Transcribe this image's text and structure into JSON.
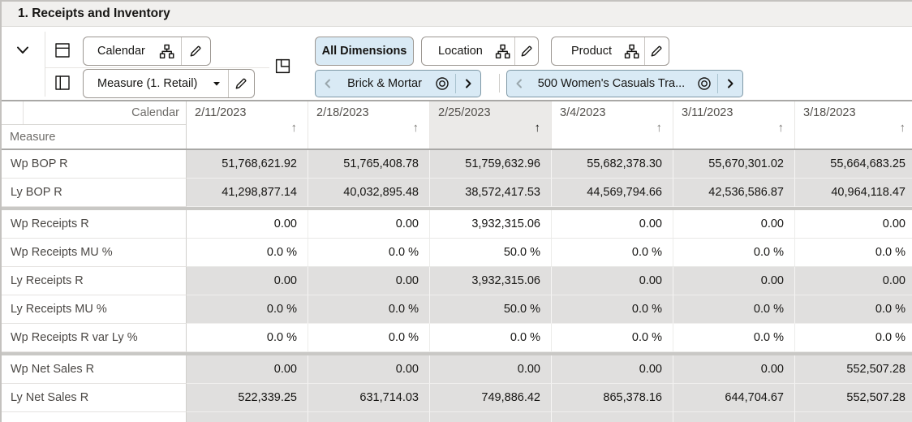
{
  "title": "1. Receipts and Inventory",
  "colors": {
    "window-border": "#c4c2bf",
    "titlebar-bg": "#f1f0ee",
    "btn-border": "#9c9792",
    "accent-bg": "#d9eaf5",
    "tile-border": "#7e98a6",
    "shaded": "#e0dfde",
    "sep": "#c9c8c5",
    "sorted-bg": "#ebeae8",
    "text": "#161513",
    "muted": "#6e6c69",
    "label": "#4b4845",
    "date": "#524f4b",
    "header-border": "#a9a8a6"
  },
  "toolbar": {
    "calendar_button": {
      "label": "Calendar"
    },
    "measure_button": {
      "label": "Measure (1. Retail)"
    },
    "all_dimensions_button": {
      "label": "All Dimensions"
    },
    "location_button": {
      "label": "Location"
    },
    "product_button": {
      "label": "Product"
    },
    "location_tile": {
      "label": "Brick & Mortar"
    },
    "product_tile": {
      "label": "500 Women's Casuals Tra..."
    }
  },
  "grid": {
    "column_dimension_label": "Calendar",
    "row_dimension_label": "Measure",
    "sort_arrow_glyph": "↑",
    "columns": [
      {
        "label": "2/11/2023",
        "sorted": false
      },
      {
        "label": "2/18/2023",
        "sorted": false
      },
      {
        "label": "2/25/2023",
        "sorted": true
      },
      {
        "label": "3/4/2023",
        "sorted": false
      },
      {
        "label": "3/11/2023",
        "sorted": false
      },
      {
        "label": "3/18/2023",
        "sorted": false
      }
    ],
    "rows": [
      {
        "label": "Wp BOP R",
        "shaded": true,
        "separator_before": false,
        "values": [
          "51,768,621.92",
          "51,765,408.78",
          "51,759,632.96",
          "55,682,378.30",
          "55,670,301.02",
          "55,664,683.25"
        ]
      },
      {
        "label": "Ly BOP R",
        "shaded": true,
        "separator_before": false,
        "values": [
          "41,298,877.14",
          "40,032,895.48",
          "38,572,417.53",
          "44,569,794.66",
          "42,536,586.87",
          "40,964,118.47"
        ]
      },
      {
        "label": "Wp Receipts R",
        "shaded": false,
        "separator_before": true,
        "values": [
          "0.00",
          "0.00",
          "3,932,315.06",
          "0.00",
          "0.00",
          "0.00"
        ]
      },
      {
        "label": "Wp Receipts MU %",
        "shaded": false,
        "separator_before": false,
        "values": [
          "0.0 %",
          "0.0 %",
          "50.0 %",
          "0.0 %",
          "0.0 %",
          "0.0 %"
        ]
      },
      {
        "label": "Ly Receipts R",
        "shaded": true,
        "separator_before": false,
        "values": [
          "0.00",
          "0.00",
          "3,932,315.06",
          "0.00",
          "0.00",
          "0.00"
        ]
      },
      {
        "label": "Ly Receipts MU %",
        "shaded": true,
        "separator_before": false,
        "values": [
          "0.0 %",
          "0.0 %",
          "50.0 %",
          "0.0 %",
          "0.0 %",
          "0.0 %"
        ]
      },
      {
        "label": "Wp Receipts R var Ly %",
        "shaded": false,
        "separator_before": false,
        "values": [
          "0.0 %",
          "0.0 %",
          "0.0 %",
          "0.0 %",
          "0.0 %",
          "0.0 %"
        ]
      },
      {
        "label": "Wp Net Sales R",
        "shaded": true,
        "separator_before": true,
        "values": [
          "0.00",
          "0.00",
          "0.00",
          "0.00",
          "0.00",
          "552,507.28"
        ]
      },
      {
        "label": "Ly Net Sales R",
        "shaded": true,
        "separator_before": false,
        "values": [
          "522,339.25",
          "631,714.03",
          "749,886.42",
          "865,378.16",
          "644,704.67",
          "552,507.28"
        ]
      }
    ],
    "partial_row_visible": true
  }
}
